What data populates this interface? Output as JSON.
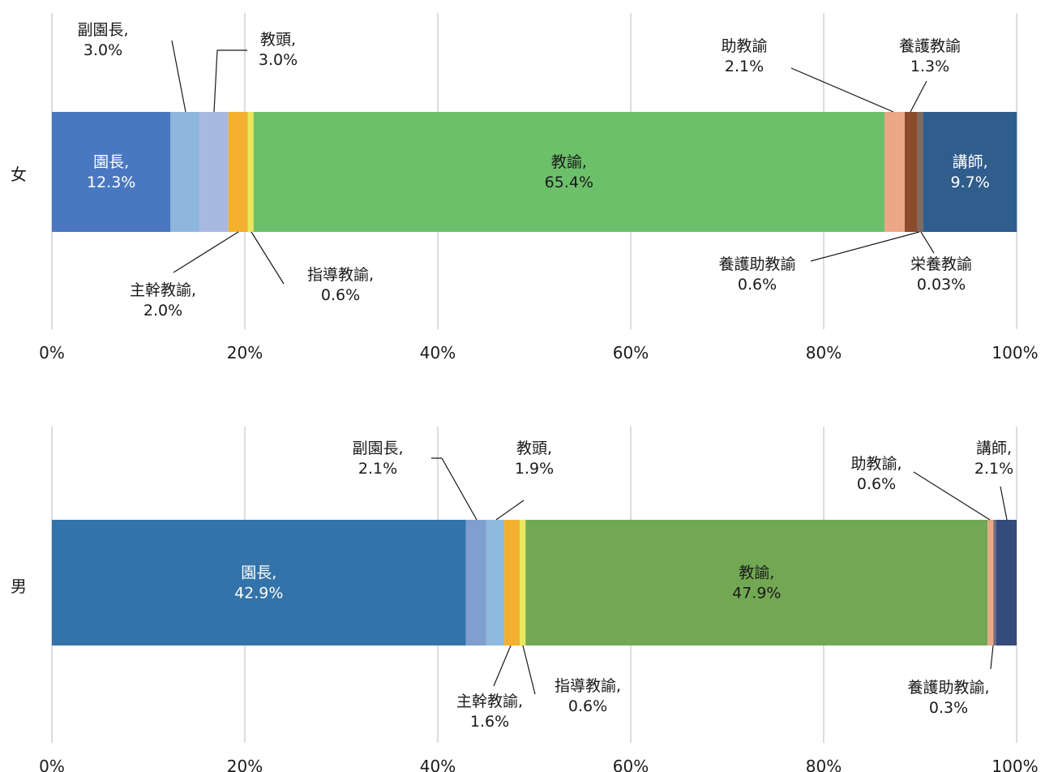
{
  "chart_data": [
    {
      "type": "bar",
      "orientation": "horizontal",
      "stacked": true,
      "category": "女",
      "xlim": [
        0,
        100
      ],
      "x_ticks": [
        "0%",
        "20%",
        "40%",
        "60%",
        "80%",
        "100%"
      ],
      "grid": true,
      "segments": [
        {
          "label_lines": [
            "園長,",
            "12.3%"
          ],
          "value": 12.3,
          "color": "#4a78c0"
        },
        {
          "label_lines": [
            "副園長,",
            "3.0%"
          ],
          "value": 3.0,
          "color": "#8fb6dc"
        },
        {
          "label_lines": [
            "教頭,",
            "3.0%"
          ],
          "value": 3.0,
          "color": "#a7b9df"
        },
        {
          "label_lines": [
            "主幹教諭,",
            "2.0%"
          ],
          "value": 2.0,
          "color": "#f4b02e"
        },
        {
          "label_lines": [
            "指導教諭,",
            "0.6%"
          ],
          "value": 0.6,
          "color": "#eae85a"
        },
        {
          "label_lines": [
            "教諭,",
            "65.4%"
          ],
          "value": 65.4,
          "color": "#6cc06a"
        },
        {
          "label_lines": [
            "助教諭",
            "2.1%"
          ],
          "value": 2.1,
          "color": "#eba886"
        },
        {
          "label_lines": [
            "養護教諭",
            "1.3%"
          ],
          "value": 1.3,
          "color": "#8b4a2c"
        },
        {
          "label_lines": [
            "養護助教諭",
            "0.6%"
          ],
          "value": 0.6,
          "color": "#7f6a5e"
        },
        {
          "label_lines": [
            "栄養教諭",
            "0.03%"
          ],
          "value": 0.03,
          "color": "#4a6a8c"
        },
        {
          "label_lines": [
            "講師,",
            "9.7%"
          ],
          "value": 9.7,
          "color": "#2f5d8c"
        }
      ]
    },
    {
      "type": "bar",
      "orientation": "horizontal",
      "stacked": true,
      "category": "男",
      "xlim": [
        0,
        100
      ],
      "x_ticks": [
        "0%",
        "20%",
        "40%",
        "60%",
        "80%",
        "100%"
      ],
      "grid": true,
      "segments": [
        {
          "label_lines": [
            "園長,",
            "42.9%"
          ],
          "value": 42.9,
          "color": "#3373a9"
        },
        {
          "label_lines": [
            "副園長,",
            "2.1%"
          ],
          "value": 2.1,
          "color": "#7f9fcf"
        },
        {
          "label_lines": [
            "教頭,",
            "1.9%"
          ],
          "value": 1.9,
          "color": "#8fbadf"
        },
        {
          "label_lines": [
            "主幹教諭,",
            "1.6%"
          ],
          "value": 1.6,
          "color": "#f4b02e"
        },
        {
          "label_lines": [
            "指導教諭,",
            "0.6%"
          ],
          "value": 0.6,
          "color": "#eae85a"
        },
        {
          "label_lines": [
            "教諭,",
            "47.9%"
          ],
          "value": 47.9,
          "color": "#72a853"
        },
        {
          "label_lines": [
            "助教諭,",
            "0.6%"
          ],
          "value": 0.6,
          "color": "#eba886"
        },
        {
          "label_lines": [
            "養護助教諭,",
            "0.3%"
          ],
          "value": 0.3,
          "color": "#6d6d85"
        },
        {
          "label_lines": [
            "講師,",
            "2.1%"
          ],
          "value": 2.1,
          "color": "#344b7c"
        }
      ]
    }
  ]
}
